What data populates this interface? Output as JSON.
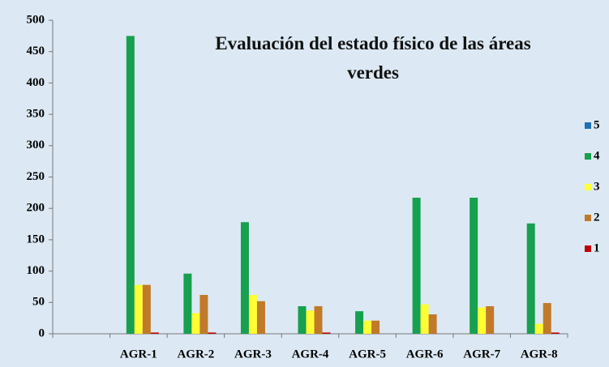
{
  "chart_data": {
    "type": "bar",
    "title": "Evaluación del estado físico de las áreas verdes",
    "categories": [
      null,
      "AGR-1",
      "AGR-2",
      "AGR-3",
      "AGR-4",
      "AGR-5",
      "AGR-6",
      "AGR-7",
      "AGR-8"
    ],
    "series": [
      {
        "name": "5",
        "color": "#1f6fb5",
        "values": [
          null,
          0,
          0,
          0,
          0,
          0,
          0,
          0,
          0
        ]
      },
      {
        "name": "4",
        "color": "#17a04f",
        "values": [
          null,
          475,
          96,
          178,
          44,
          36,
          217,
          217,
          176
        ]
      },
      {
        "name": "3",
        "color": "#ffff33",
        "values": [
          null,
          78,
          33,
          62,
          37,
          21,
          47,
          42,
          16
        ]
      },
      {
        "name": "2",
        "color": "#c07a2a",
        "values": [
          null,
          78,
          62,
          52,
          44,
          21,
          31,
          44,
          49
        ]
      },
      {
        "name": "1",
        "color": "#c00000",
        "values": [
          null,
          2,
          2,
          0,
          2,
          0,
          0,
          0,
          2
        ]
      }
    ],
    "ylim": [
      0,
      500
    ],
    "yticks": [
      0,
      50,
      100,
      150,
      200,
      250,
      300,
      350,
      400,
      450,
      500
    ],
    "grid": false,
    "legend": "right"
  }
}
